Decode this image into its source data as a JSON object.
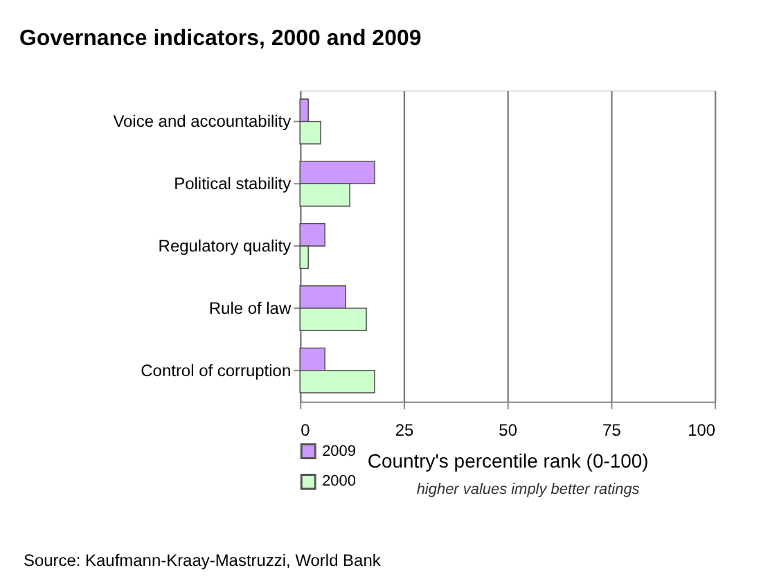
{
  "chart_data": {
    "type": "bar",
    "orientation": "horizontal",
    "title": "Governance indicators, 2000 and 2009",
    "categories": [
      "Voice and accountability",
      "Political stability",
      "Regulatory quality",
      "Rule of law",
      "Control of corruption"
    ],
    "series": [
      {
        "name": "2009",
        "color": "#cc99ff",
        "values": [
          2,
          18,
          6,
          11,
          6
        ]
      },
      {
        "name": "2000",
        "color": "#ccffcc",
        "values": [
          5,
          12,
          2,
          16,
          18
        ]
      }
    ],
    "xlim": [
      0,
      100
    ],
    "xticks": [
      0,
      25,
      50,
      75,
      100
    ],
    "grid": "x",
    "legend": "bottom left",
    "xlabel": "Country's percentile rank (0-100)",
    "annotations": [
      "higher values imply better ratings",
      "Source: Kaufmann-Kraay-Mastruzzi, World Bank"
    ]
  }
}
